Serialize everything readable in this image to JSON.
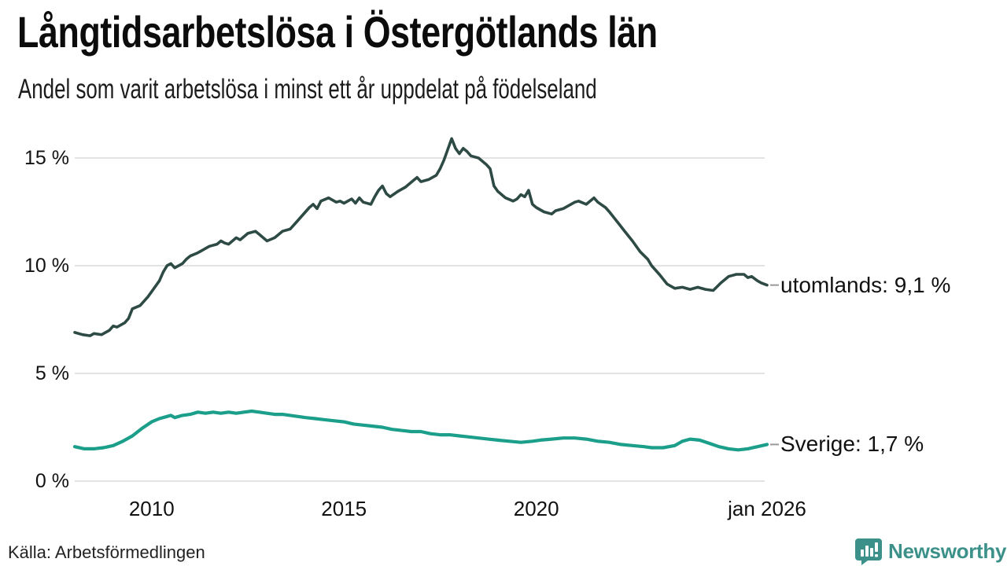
{
  "header": {
    "title": "Långtidsarbetslösa i Östergötlands län",
    "subtitle": "Andel som varit arbetslösa i minst ett år uppdelat på födelseland"
  },
  "footer": {
    "source": "Källa: Arbetsförmedlingen",
    "brand": "Newsworthy"
  },
  "colors": {
    "utomlands_line": "#2e4a44",
    "sverige_line": "#1b9e8a",
    "grid": "#e3e3e3",
    "connector": "#999999",
    "text": "#111111",
    "brand": "#3b9189"
  },
  "chart_data": {
    "type": "line",
    "title": "Långtidsarbetslösa i Östergötlands län",
    "subtitle": "Andel som varit arbetslösa i minst ett år uppdelat på födelseland",
    "source": "Källa: Arbetsförmedlingen",
    "unit": "%",
    "grid": true,
    "legend_position": "right-end-labels",
    "x_axis": {
      "range": [
        2008,
        2026
      ],
      "ticks": [
        {
          "year": 2010,
          "label": "2010"
        },
        {
          "year": 2015,
          "label": "2015"
        },
        {
          "year": 2020,
          "label": "2020"
        },
        {
          "year": 2026,
          "label": "jan 2026"
        }
      ]
    },
    "y_axis": {
      "range": [
        0,
        16
      ],
      "ticks": [
        {
          "value": 0,
          "label": "0 %"
        },
        {
          "value": 5,
          "label": "5 %"
        },
        {
          "value": 10,
          "label": "10 %"
        },
        {
          "value": 15,
          "label": "15 %"
        }
      ]
    },
    "series": [
      {
        "name": "utomlands",
        "end_label": "utomlands: 9,1 %",
        "latest_value": 9.1,
        "color": "#2e4a44",
        "line_width": 3.6,
        "points": [
          [
            2008.0,
            6.9
          ],
          [
            2008.2,
            6.8
          ],
          [
            2008.4,
            6.75
          ],
          [
            2008.5,
            6.85
          ],
          [
            2008.7,
            6.8
          ],
          [
            2008.9,
            7.0
          ],
          [
            2009.0,
            7.2
          ],
          [
            2009.1,
            7.15
          ],
          [
            2009.3,
            7.35
          ],
          [
            2009.4,
            7.55
          ],
          [
            2009.5,
            8.0
          ],
          [
            2009.7,
            8.15
          ],
          [
            2009.9,
            8.55
          ],
          [
            2010.0,
            8.8
          ],
          [
            2010.2,
            9.3
          ],
          [
            2010.3,
            9.7
          ],
          [
            2010.4,
            10.0
          ],
          [
            2010.5,
            10.1
          ],
          [
            2010.6,
            9.9
          ],
          [
            2010.8,
            10.1
          ],
          [
            2010.9,
            10.3
          ],
          [
            2011.0,
            10.45
          ],
          [
            2011.2,
            10.6
          ],
          [
            2011.4,
            10.8
          ],
          [
            2011.5,
            10.9
          ],
          [
            2011.7,
            11.0
          ],
          [
            2011.8,
            11.15
          ],
          [
            2011.9,
            11.05
          ],
          [
            2012.0,
            11.0
          ],
          [
            2012.2,
            11.3
          ],
          [
            2012.3,
            11.2
          ],
          [
            2012.5,
            11.5
          ],
          [
            2012.7,
            11.6
          ],
          [
            2012.8,
            11.45
          ],
          [
            2013.0,
            11.15
          ],
          [
            2013.2,
            11.3
          ],
          [
            2013.4,
            11.6
          ],
          [
            2013.6,
            11.7
          ],
          [
            2013.8,
            12.1
          ],
          [
            2014.0,
            12.5
          ],
          [
            2014.1,
            12.7
          ],
          [
            2014.2,
            12.85
          ],
          [
            2014.3,
            12.65
          ],
          [
            2014.4,
            13.0
          ],
          [
            2014.6,
            13.15
          ],
          [
            2014.8,
            12.95
          ],
          [
            2014.9,
            13.0
          ],
          [
            2015.0,
            12.9
          ],
          [
            2015.2,
            13.1
          ],
          [
            2015.3,
            12.9
          ],
          [
            2015.4,
            13.15
          ],
          [
            2015.5,
            12.95
          ],
          [
            2015.7,
            12.85
          ],
          [
            2015.8,
            13.2
          ],
          [
            2015.9,
            13.5
          ],
          [
            2016.0,
            13.7
          ],
          [
            2016.1,
            13.35
          ],
          [
            2016.2,
            13.2
          ],
          [
            2016.4,
            13.45
          ],
          [
            2016.6,
            13.65
          ],
          [
            2016.8,
            13.95
          ],
          [
            2016.9,
            14.1
          ],
          [
            2017.0,
            13.9
          ],
          [
            2017.2,
            14.0
          ],
          [
            2017.4,
            14.2
          ],
          [
            2017.5,
            14.5
          ],
          [
            2017.6,
            14.9
          ],
          [
            2017.8,
            15.9
          ],
          [
            2017.9,
            15.45
          ],
          [
            2018.0,
            15.2
          ],
          [
            2018.1,
            15.45
          ],
          [
            2018.2,
            15.3
          ],
          [
            2018.3,
            15.1
          ],
          [
            2018.5,
            15.0
          ],
          [
            2018.6,
            14.85
          ],
          [
            2018.7,
            14.7
          ],
          [
            2018.8,
            14.5
          ],
          [
            2018.9,
            13.7
          ],
          [
            2019.0,
            13.45
          ],
          [
            2019.2,
            13.15
          ],
          [
            2019.4,
            13.0
          ],
          [
            2019.5,
            13.1
          ],
          [
            2019.6,
            13.3
          ],
          [
            2019.7,
            13.2
          ],
          [
            2019.8,
            13.5
          ],
          [
            2019.9,
            12.85
          ],
          [
            2020.0,
            12.7
          ],
          [
            2020.2,
            12.5
          ],
          [
            2020.4,
            12.4
          ],
          [
            2020.5,
            12.55
          ],
          [
            2020.7,
            12.65
          ],
          [
            2020.9,
            12.85
          ],
          [
            2021.0,
            12.95
          ],
          [
            2021.1,
            13.0
          ],
          [
            2021.3,
            12.85
          ],
          [
            2021.5,
            13.15
          ],
          [
            2021.6,
            12.95
          ],
          [
            2021.8,
            12.7
          ],
          [
            2021.9,
            12.5
          ],
          [
            2022.1,
            12.05
          ],
          [
            2022.3,
            11.6
          ],
          [
            2022.5,
            11.15
          ],
          [
            2022.7,
            10.65
          ],
          [
            2022.9,
            10.3
          ],
          [
            2023.0,
            10.0
          ],
          [
            2023.2,
            9.6
          ],
          [
            2023.4,
            9.15
          ],
          [
            2023.6,
            8.95
          ],
          [
            2023.8,
            9.0
          ],
          [
            2024.0,
            8.9
          ],
          [
            2024.2,
            9.0
          ],
          [
            2024.4,
            8.9
          ],
          [
            2024.6,
            8.85
          ],
          [
            2024.8,
            9.2
          ],
          [
            2025.0,
            9.5
          ],
          [
            2025.2,
            9.6
          ],
          [
            2025.4,
            9.6
          ],
          [
            2025.5,
            9.45
          ],
          [
            2025.6,
            9.5
          ],
          [
            2025.75,
            9.3
          ],
          [
            2025.85,
            9.2
          ],
          [
            2026.0,
            9.1
          ]
        ]
      },
      {
        "name": "Sverige",
        "end_label": "Sverige: 1,7 %",
        "latest_value": 1.7,
        "color": "#1b9e8a",
        "line_width": 4.2,
        "points": [
          [
            2008.0,
            1.6
          ],
          [
            2008.25,
            1.5
          ],
          [
            2008.5,
            1.5
          ],
          [
            2008.75,
            1.55
          ],
          [
            2009.0,
            1.65
          ],
          [
            2009.25,
            1.85
          ],
          [
            2009.5,
            2.1
          ],
          [
            2009.75,
            2.45
          ],
          [
            2010.0,
            2.75
          ],
          [
            2010.2,
            2.9
          ],
          [
            2010.4,
            3.0
          ],
          [
            2010.5,
            3.05
          ],
          [
            2010.6,
            2.95
          ],
          [
            2010.8,
            3.05
          ],
          [
            2011.0,
            3.1
          ],
          [
            2011.2,
            3.2
          ],
          [
            2011.4,
            3.15
          ],
          [
            2011.6,
            3.2
          ],
          [
            2011.8,
            3.15
          ],
          [
            2012.0,
            3.2
          ],
          [
            2012.2,
            3.15
          ],
          [
            2012.4,
            3.2
          ],
          [
            2012.6,
            3.25
          ],
          [
            2012.8,
            3.2
          ],
          [
            2013.0,
            3.15
          ],
          [
            2013.2,
            3.1
          ],
          [
            2013.4,
            3.1
          ],
          [
            2013.6,
            3.05
          ],
          [
            2013.8,
            3.0
          ],
          [
            2014.0,
            2.95
          ],
          [
            2014.25,
            2.9
          ],
          [
            2014.5,
            2.85
          ],
          [
            2014.75,
            2.8
          ],
          [
            2015.0,
            2.75
          ],
          [
            2015.25,
            2.65
          ],
          [
            2015.5,
            2.6
          ],
          [
            2015.75,
            2.55
          ],
          [
            2016.0,
            2.5
          ],
          [
            2016.25,
            2.4
          ],
          [
            2016.5,
            2.35
          ],
          [
            2016.75,
            2.3
          ],
          [
            2017.0,
            2.3
          ],
          [
            2017.25,
            2.2
          ],
          [
            2017.5,
            2.15
          ],
          [
            2017.75,
            2.15
          ],
          [
            2018.0,
            2.1
          ],
          [
            2018.25,
            2.05
          ],
          [
            2018.5,
            2.0
          ],
          [
            2018.75,
            1.95
          ],
          [
            2019.0,
            1.9
          ],
          [
            2019.3,
            1.85
          ],
          [
            2019.6,
            1.8
          ],
          [
            2019.9,
            1.85
          ],
          [
            2020.1,
            1.9
          ],
          [
            2020.4,
            1.95
          ],
          [
            2020.7,
            2.0
          ],
          [
            2021.0,
            2.0
          ],
          [
            2021.3,
            1.95
          ],
          [
            2021.6,
            1.85
          ],
          [
            2021.9,
            1.8
          ],
          [
            2022.2,
            1.7
          ],
          [
            2022.5,
            1.65
          ],
          [
            2022.8,
            1.6
          ],
          [
            2023.0,
            1.55
          ],
          [
            2023.3,
            1.55
          ],
          [
            2023.6,
            1.65
          ],
          [
            2023.8,
            1.85
          ],
          [
            2024.0,
            1.95
          ],
          [
            2024.25,
            1.9
          ],
          [
            2024.5,
            1.75
          ],
          [
            2024.75,
            1.6
          ],
          [
            2025.0,
            1.5
          ],
          [
            2025.25,
            1.45
          ],
          [
            2025.5,
            1.5
          ],
          [
            2025.75,
            1.6
          ],
          [
            2026.0,
            1.7
          ]
        ]
      }
    ]
  }
}
